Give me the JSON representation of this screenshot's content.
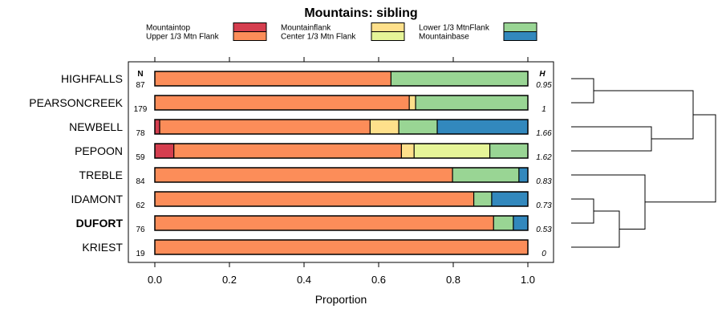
{
  "chart_data": {
    "type": "stacked-bar",
    "title": "Mountains: sibling",
    "xlabel": "Proportion",
    "xlim": [
      0,
      1
    ],
    "xticks": [
      "0.0",
      "0.2",
      "0.4",
      "0.6",
      "0.8",
      "1.0"
    ],
    "n_header": "N",
    "h_header": "H",
    "categories": [
      {
        "key": "mountaintop",
        "label": "Mountaintop",
        "color": "#d53e4f"
      },
      {
        "key": "upper",
        "label": "Upper 1/3 Mtn Flank",
        "color": "#fc8d59"
      },
      {
        "key": "flank",
        "label": "Mountainflank",
        "color": "#fee08b"
      },
      {
        "key": "center",
        "label": "Center 1/3 Mtn Flank",
        "color": "#e6f598"
      },
      {
        "key": "lower",
        "label": "Lower 1/3 MtnFlank",
        "color": "#99d594"
      },
      {
        "key": "base",
        "label": "Mountainbase",
        "color": "#3288bd"
      }
    ],
    "rows": [
      {
        "name": "HIGHFALLS",
        "n": "87",
        "h": "0.95",
        "bold": false,
        "values": [
          0,
          0.633,
          0,
          0,
          0.367,
          0
        ]
      },
      {
        "name": "PEARSONCREEK",
        "n": "179",
        "h": "1",
        "bold": false,
        "values": [
          0,
          0.682,
          0.017,
          0,
          0.301,
          0
        ]
      },
      {
        "name": "NEWBELL",
        "n": "78",
        "h": "1.66",
        "bold": false,
        "values": [
          0.013,
          0.564,
          0.077,
          0,
          0.103,
          0.243
        ]
      },
      {
        "name": "PEPOON",
        "n": "59",
        "h": "1.62",
        "bold": false,
        "values": [
          0.051,
          0.61,
          0.034,
          0.203,
          0.102,
          0
        ]
      },
      {
        "name": "TREBLE",
        "n": "84",
        "h": "0.83",
        "bold": false,
        "values": [
          0,
          0.798,
          0,
          0,
          0.178,
          0.024
        ]
      },
      {
        "name": "IDAMONT",
        "n": "62",
        "h": "0.73",
        "bold": false,
        "values": [
          0,
          0.855,
          0,
          0,
          0.048,
          0.097
        ]
      },
      {
        "name": "DUFORT",
        "n": "76",
        "h": "0.53",
        "bold": true,
        "values": [
          0,
          0.908,
          0,
          0,
          0.053,
          0.039
        ]
      },
      {
        "name": "KRIEST",
        "n": "19",
        "h": "0",
        "bold": false,
        "values": [
          0,
          1,
          0,
          0,
          0,
          0
        ]
      }
    ],
    "dendrogram": {
      "leaf_order": [
        "HIGHFALLS",
        "PEARSONCREEK",
        "NEWBELL",
        "PEPOON",
        "TREBLE",
        "IDAMONT",
        "DUFORT",
        "KRIEST"
      ],
      "merges": [
        {
          "a": 0,
          "b": 1,
          "height": 0.07
        },
        {
          "a": 2,
          "b": 3,
          "height": 0.25
        },
        {
          "a": 5,
          "b": 6,
          "height": 0.07
        },
        {
          "a": 7,
          "b": 10,
          "height": 0.15
        },
        {
          "a": 4,
          "b": 11,
          "height": 0.23
        },
        {
          "a": 8,
          "b": 9,
          "height": 0.38
        },
        {
          "a": 13,
          "b": 12,
          "height": 0.45
        }
      ]
    }
  }
}
